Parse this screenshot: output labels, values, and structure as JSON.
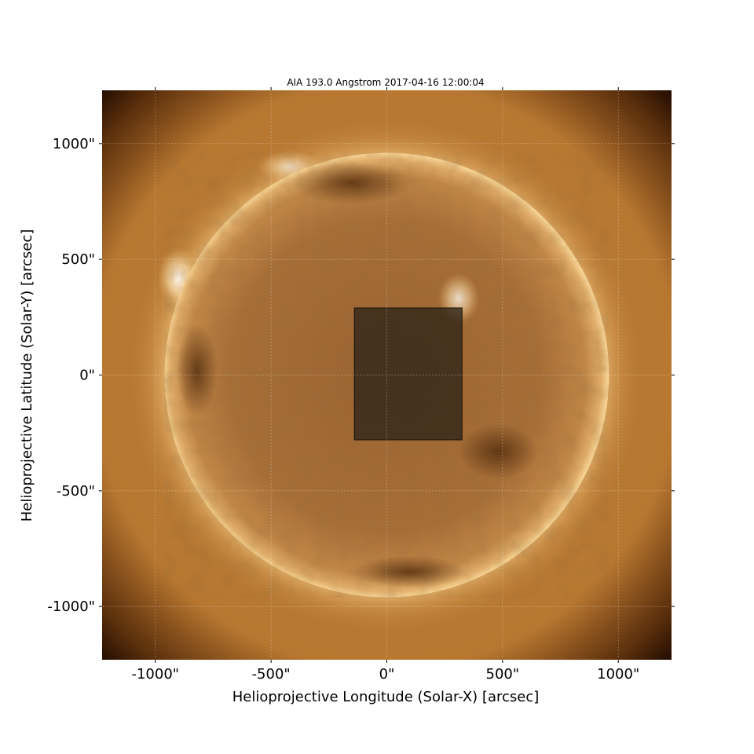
{
  "chart_data": {
    "type": "heatmap",
    "title": "AIA 193.0 Angstrom 2017-04-16 12:00:04",
    "xlabel": "Helioprojective Longitude (Solar-X) [arcsec]",
    "ylabel": "Helioprojective Latitude (Solar-Y) [arcsec]",
    "xlim": [
      -1230,
      1230
    ],
    "ylim": [
      -1230,
      1230
    ],
    "x_ticks": [
      -1000,
      -500,
      0,
      500,
      1000
    ],
    "y_ticks": [
      -1000,
      -500,
      0,
      500,
      1000
    ],
    "x_tick_labels": [
      "-1000\"",
      "-500\"",
      "0\"",
      "500\"",
      "1000\""
    ],
    "y_tick_labels": [
      "-1000\"",
      "-500\"",
      "0\"",
      "500\"",
      "1000\""
    ],
    "grid": true,
    "solar_disk_radius_arcsec": 960,
    "colormap": "sdoaia193",
    "highlight_region": {
      "x_range": [
        -140,
        325
      ],
      "y_range": [
        -280,
        290
      ]
    },
    "colors": {
      "disk_center": "#a06a33",
      "limb": "#f6d08e",
      "corona": "#9c5e22",
      "background": "#1a0700",
      "highlight_fill": "#2d2418"
    }
  }
}
